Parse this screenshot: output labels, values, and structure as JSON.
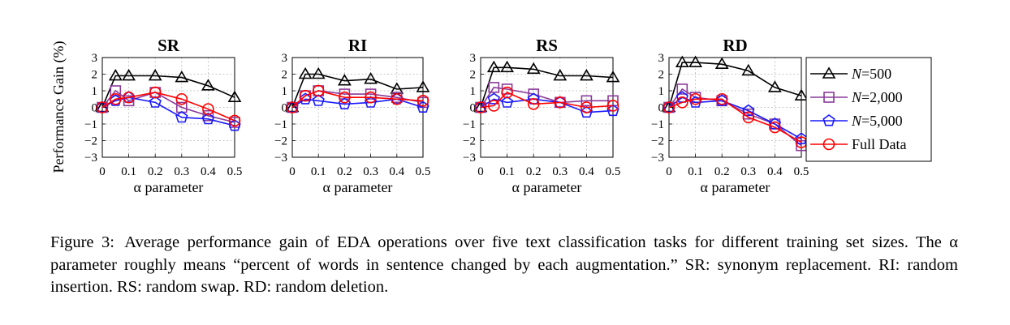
{
  "figure": {
    "ylabel": "Performance Gain (%)",
    "xlabel": "α parameter",
    "legend_entries": [
      "N=500",
      "N=2,000",
      "N=5,000",
      "Full Data"
    ]
  },
  "caption": {
    "label": "Figure 3:",
    "text": "Average performance gain of EDA operations over five text classification tasks for different training set sizes. The α parameter roughly means “percent of words in sentence changed by each augmentation.” SR: synonym replacement. RI: random insertion. RS: random swap. RD: random deletion."
  },
  "colors": {
    "n500": "#000000",
    "n2000": "#8b3a9a",
    "n5000": "#1a1aff",
    "full": "#ff0000"
  },
  "chart_data": [
    {
      "type": "line",
      "title": "SR",
      "xlabel": "α parameter",
      "ylabel": "Performance Gain (%)",
      "x": [
        0,
        0.05,
        0.1,
        0.2,
        0.3,
        0.4,
        0.5
      ],
      "xticks": [
        "0",
        "0.1",
        "0.2",
        "0.3",
        "0.4",
        "0.5"
      ],
      "xtick_values": [
        0,
        0.1,
        0.2,
        0.3,
        0.4,
        0.5
      ],
      "yticks": [
        "−3",
        "−2",
        "−1",
        "0",
        "1",
        "2",
        "3"
      ],
      "ytick_values": [
        -3,
        -2,
        -1,
        0,
        1,
        2,
        3
      ],
      "xlim": [
        0,
        0.5
      ],
      "ylim": [
        -3,
        3
      ],
      "grid": true,
      "series": [
        {
          "name": "N=500",
          "values": [
            0,
            1.9,
            1.9,
            1.9,
            1.8,
            1.3,
            0.6
          ]
        },
        {
          "name": "N=2,000",
          "values": [
            0,
            1.0,
            0.4,
            0.9,
            0.0,
            -0.5,
            -0.9
          ]
        },
        {
          "name": "N=5,000",
          "values": [
            0,
            0.4,
            0.6,
            0.3,
            -0.6,
            -0.7,
            -1.1
          ]
        },
        {
          "name": "Full Data",
          "values": [
            0,
            0.5,
            0.6,
            0.9,
            0.5,
            -0.1,
            -0.8
          ]
        }
      ]
    },
    {
      "type": "line",
      "title": "RI",
      "xlabel": "α parameter",
      "ylabel": "",
      "x": [
        0,
        0.05,
        0.1,
        0.2,
        0.3,
        0.4,
        0.5
      ],
      "xticks": [
        "0",
        "0.1",
        "0.2",
        "0.3",
        "0.4",
        "0.5"
      ],
      "xtick_values": [
        0,
        0.1,
        0.2,
        0.3,
        0.4,
        0.5
      ],
      "yticks": [
        "−3",
        "−2",
        "−1",
        "0",
        "1",
        "2",
        "3"
      ],
      "ytick_values": [
        -3,
        -2,
        -1,
        0,
        1,
        2,
        3
      ],
      "xlim": [
        0,
        0.5
      ],
      "ylim": [
        -3,
        3
      ],
      "grid": true,
      "series": [
        {
          "name": "N=500",
          "values": [
            0,
            2.0,
            2.0,
            1.6,
            1.7,
            1.1,
            1.2
          ]
        },
        {
          "name": "N=2,000",
          "values": [
            0,
            0.7,
            1.0,
            0.8,
            0.8,
            0.6,
            0.3
          ]
        },
        {
          "name": "N=5,000",
          "values": [
            0,
            0.5,
            0.4,
            0.2,
            0.3,
            0.5,
            0.0
          ]
        },
        {
          "name": "Full Data",
          "values": [
            0,
            0.7,
            1.0,
            0.6,
            0.6,
            0.5,
            0.4
          ]
        }
      ]
    },
    {
      "type": "line",
      "title": "RS",
      "xlabel": "α parameter",
      "ylabel": "",
      "x": [
        0,
        0.05,
        0.1,
        0.2,
        0.3,
        0.4,
        0.5
      ],
      "xticks": [
        "0",
        "0.1",
        "0.2",
        "0.3",
        "0.4",
        "0.5"
      ],
      "xtick_values": [
        0,
        0.1,
        0.2,
        0.3,
        0.4,
        0.5
      ],
      "yticks": [
        "−3",
        "−2",
        "−1",
        "0",
        "1",
        "2",
        "3"
      ],
      "ytick_values": [
        -3,
        -2,
        -1,
        0,
        1,
        2,
        3
      ],
      "xlim": [
        0,
        0.5
      ],
      "ylim": [
        -3,
        3
      ],
      "grid": true,
      "series": [
        {
          "name": "N=500",
          "values": [
            0,
            2.4,
            2.4,
            2.3,
            1.9,
            1.9,
            1.8
          ]
        },
        {
          "name": "N=2,000",
          "values": [
            0,
            1.2,
            1.1,
            0.8,
            0.3,
            0.4,
            0.4
          ]
        },
        {
          "name": "N=5,000",
          "values": [
            0,
            0.5,
            0.3,
            0.5,
            0.3,
            -0.3,
            -0.2
          ]
        },
        {
          "name": "Full Data",
          "values": [
            0,
            0.1,
            0.9,
            0.2,
            0.3,
            0.0,
            0.1
          ]
        }
      ]
    },
    {
      "type": "line",
      "title": "RD",
      "xlabel": "α parameter",
      "ylabel": "",
      "x": [
        0,
        0.05,
        0.1,
        0.2,
        0.3,
        0.4,
        0.5
      ],
      "xticks": [
        "0",
        "0.1",
        "0.2",
        "0.3",
        "0.4",
        "0.5"
      ],
      "xtick_values": [
        0,
        0.1,
        0.2,
        0.3,
        0.4,
        0.5
      ],
      "yticks": [
        "−3",
        "−2",
        "−1",
        "0",
        "1",
        "2",
        "3"
      ],
      "ytick_values": [
        -3,
        -2,
        -1,
        0,
        1,
        2,
        3
      ],
      "xlim": [
        0,
        0.5
      ],
      "ylim": [
        -3,
        3
      ],
      "grid": true,
      "series": [
        {
          "name": "N=500",
          "values": [
            0,
            2.7,
            2.7,
            2.6,
            2.2,
            1.2,
            0.7
          ]
        },
        {
          "name": "N=2,000",
          "values": [
            0,
            1.1,
            0.6,
            0.4,
            -0.4,
            -1.0,
            -2.3
          ]
        },
        {
          "name": "N=5,000",
          "values": [
            0,
            0.6,
            0.3,
            0.4,
            -0.2,
            -1.0,
            -1.9
          ]
        },
        {
          "name": "Full Data",
          "values": [
            0,
            0.3,
            0.5,
            0.5,
            -0.6,
            -1.2,
            -2.1
          ]
        }
      ]
    }
  ]
}
